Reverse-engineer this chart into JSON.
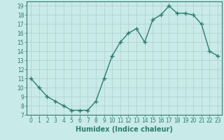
{
  "x": [
    0,
    1,
    2,
    3,
    4,
    5,
    6,
    7,
    8,
    9,
    10,
    11,
    12,
    13,
    14,
    15,
    16,
    17,
    18,
    19,
    20,
    21,
    22,
    23
  ],
  "y": [
    11,
    10,
    9,
    8.5,
    8,
    7.5,
    7.5,
    7.5,
    8.5,
    11,
    13.5,
    15,
    16,
    16.5,
    15,
    17.5,
    18,
    19,
    18.2,
    18.2,
    18,
    17,
    14,
    13.5
  ],
  "line_color": "#2d7d6e",
  "marker": "+",
  "marker_size": 4,
  "marker_linewidth": 1.0,
  "background_color": "#c8eae8",
  "grid_color": "#b0ceca",
  "xlabel": "Humidex (Indice chaleur)",
  "xlabel_fontsize": 7,
  "xlim": [
    -0.5,
    23.5
  ],
  "ylim": [
    7,
    19.5
  ],
  "yticks": [
    7,
    8,
    9,
    10,
    11,
    12,
    13,
    14,
    15,
    16,
    17,
    18,
    19
  ],
  "xticks": [
    0,
    1,
    2,
    3,
    4,
    5,
    6,
    7,
    8,
    9,
    10,
    11,
    12,
    13,
    14,
    15,
    16,
    17,
    18,
    19,
    20,
    21,
    22,
    23
  ],
  "tick_fontsize": 5.5,
  "line_width": 1.0
}
